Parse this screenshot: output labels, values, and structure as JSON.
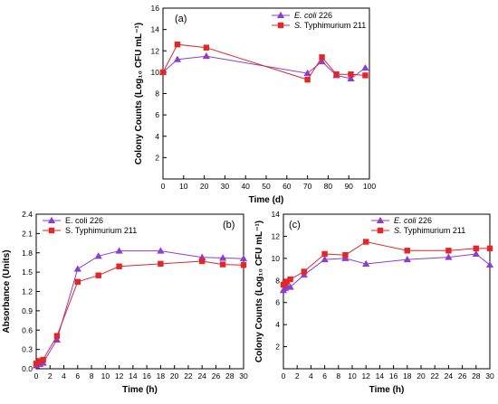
{
  "chart_data": [
    {
      "type": "line",
      "panel_label": "(a)",
      "xlabel": "Time (d)",
      "ylabel": "Colony Counts (Log₁₀ CFU mL⁻¹)",
      "xlim": [
        0,
        100
      ],
      "ylim": [
        0,
        16
      ],
      "xticks": [
        0,
        10,
        20,
        30,
        40,
        50,
        60,
        70,
        80,
        90,
        100
      ],
      "yticks": [
        2,
        4,
        6,
        8,
        10,
        12,
        14,
        16
      ],
      "grid": false,
      "legend_position": "top-right",
      "series": [
        {
          "name": "E. coli 226",
          "name_parts": [
            "E. coli",
            " 226"
          ],
          "color": "#8a3fd1",
          "marker": "triangle",
          "x": [
            0,
            7,
            21,
            70,
            77,
            84,
            91,
            98
          ],
          "y": [
            10.0,
            11.2,
            11.5,
            9.9,
            11.0,
            9.7,
            9.4,
            10.4
          ]
        },
        {
          "name": "S. Typhimurium 211",
          "name_parts": [
            "S.",
            " Typhimurium 211"
          ],
          "color": "#e32626",
          "marker": "square",
          "x": [
            0,
            7,
            21,
            70,
            77,
            84,
            91,
            98
          ],
          "y": [
            10.0,
            12.6,
            12.3,
            9.3,
            11.4,
            9.8,
            9.8,
            9.7
          ]
        }
      ]
    },
    {
      "type": "line",
      "panel_label": "(b)",
      "xlabel": "Time (h)",
      "ylabel": "Absorbance (Units)",
      "xlim": [
        0,
        30
      ],
      "ylim": [
        0,
        2.4
      ],
      "xticks": [
        0,
        2,
        4,
        6,
        8,
        10,
        12,
        14,
        16,
        18,
        20,
        22,
        24,
        26,
        28,
        30
      ],
      "yticks": [
        0.0,
        0.3,
        0.6,
        0.9,
        1.2,
        1.5,
        1.8,
        2.1,
        2.4
      ],
      "ytick_labels": [
        "0.0",
        "0.3",
        "0.6",
        "0.9",
        "1.2",
        "1.5",
        "1.8",
        "2.1",
        "2.4"
      ],
      "grid": false,
      "legend_position": "top-left",
      "series": [
        {
          "name": "E. coli 226",
          "name_parts": [
            "E. coli 226",
            ""
          ],
          "color": "#8a3fd1",
          "marker": "triangle",
          "x": [
            0,
            0.5,
            1,
            3,
            6,
            9,
            12,
            18,
            24,
            27,
            30
          ],
          "y": [
            0.05,
            0.07,
            0.09,
            0.45,
            1.55,
            1.75,
            1.83,
            1.83,
            1.73,
            1.72,
            1.71
          ]
        },
        {
          "name": "S. Typhimurium 211",
          "name_parts": [
            "S. Typhimurium 211",
            ""
          ],
          "color": "#e32626",
          "marker": "square",
          "x": [
            0,
            0.5,
            1,
            3,
            6,
            9,
            12,
            18,
            24,
            27,
            30
          ],
          "y": [
            0.08,
            0.12,
            0.14,
            0.51,
            1.35,
            1.45,
            1.59,
            1.63,
            1.67,
            1.62,
            1.61
          ]
        }
      ]
    },
    {
      "type": "line",
      "panel_label": "(c)",
      "xlabel": "Time (h)",
      "ylabel": "Colony Counts (Log₁₀ CFU mL⁻¹)",
      "xlim": [
        0,
        30
      ],
      "ylim": [
        0,
        14
      ],
      "xticks": [
        0,
        2,
        4,
        6,
        8,
        10,
        12,
        14,
        16,
        18,
        20,
        22,
        24,
        26,
        28,
        30
      ],
      "yticks": [
        2,
        4,
        6,
        8,
        10,
        12,
        14
      ],
      "grid": false,
      "legend_position": "top-right",
      "series": [
        {
          "name": "E. coli 226",
          "name_parts": [
            "E. coli",
            " 226"
          ],
          "color": "#8a3fd1",
          "marker": "triangle",
          "x": [
            0,
            0.25,
            0.5,
            1,
            3,
            6,
            9,
            12,
            18,
            24,
            28,
            30
          ],
          "y": [
            7.1,
            7.3,
            7.5,
            7.4,
            8.5,
            9.9,
            10.0,
            9.5,
            9.9,
            10.1,
            10.4,
            9.4
          ]
        },
        {
          "name": "S. Typhimurium 211",
          "name_parts": [
            "S.",
            " Typhimurium 211"
          ],
          "color": "#e32626",
          "marker": "square",
          "x": [
            0,
            0.25,
            0.5,
            1,
            3,
            6,
            9,
            12,
            18,
            24,
            28,
            30
          ],
          "y": [
            7.6,
            7.8,
            7.9,
            8.1,
            8.8,
            10.4,
            10.3,
            11.5,
            10.7,
            10.7,
            10.9,
            10.9
          ]
        }
      ]
    }
  ]
}
